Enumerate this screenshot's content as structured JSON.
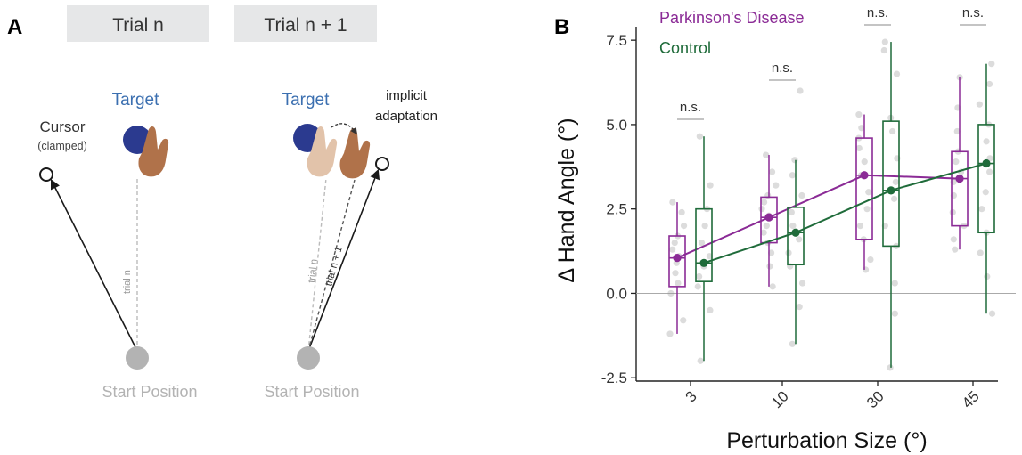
{
  "panel_a": {
    "letter": "A",
    "trial_n_header": "Trial n",
    "trial_n1_header": "Trial n + 1",
    "target_label": "Target",
    "cursor_label": "Cursor",
    "cursor_sub": "(clamped)",
    "implicit_line1": "implicit",
    "implicit_line2": "adaptation",
    "trial_n_path": "trial n",
    "trial_n1_path": "trial n + 1",
    "start_label": "Start Position",
    "colors": {
      "target": "#2b3a8f",
      "start": "#b3b3b3",
      "header_bg": "#e6e7e8",
      "label_blue": "#3b6fb0"
    }
  },
  "panel_b": {
    "letter": "B",
    "chart_data": {
      "type": "box",
      "xlabel": "Perturbation Size (°)",
      "ylabel": "Δ Hand Angle (°)",
      "categories": [
        "3",
        "10",
        "30",
        "45"
      ],
      "ylim": [
        -2.6,
        7.9
      ],
      "yticks": [
        "-2.5",
        "0.0",
        "2.5",
        "5.0",
        "7.5"
      ],
      "yticks_values": [
        -2.5,
        0,
        2.5,
        5,
        7.5
      ],
      "legend_position": "top-left",
      "significance": [
        "n.s.",
        "n.s.",
        "n.s.",
        "n.s."
      ],
      "series": [
        {
          "name": "Parkinson's Disease",
          "color": "#8b2b96",
          "means": [
            1.05,
            2.25,
            3.5,
            3.4
          ],
          "boxes": [
            {
              "q1": 0.2,
              "median": 1.05,
              "q3": 1.7,
              "min": -1.2,
              "max": 2.7
            },
            {
              "q1": 1.5,
              "median": 2.25,
              "q3": 2.85,
              "min": 0.2,
              "max": 4.1
            },
            {
              "q1": 1.6,
              "median": 3.5,
              "q3": 4.6,
              "min": 0.7,
              "max": 5.3
            },
            {
              "q1": 2.0,
              "median": 3.4,
              "q3": 4.2,
              "min": 1.3,
              "max": 6.4
            }
          ],
          "points": [
            [
              -1.2,
              -0.8,
              0.0,
              0.3,
              0.6,
              0.9,
              1.1,
              1.3,
              1.5,
              1.7,
              2.0,
              2.4,
              2.7
            ],
            [
              0.2,
              0.8,
              1.2,
              1.5,
              1.8,
              2.0,
              2.3,
              2.5,
              2.7,
              2.9,
              3.2,
              3.6,
              4.1
            ],
            [
              0.7,
              1.0,
              1.6,
              2.0,
              2.5,
              3.0,
              3.5,
              3.9,
              4.3,
              4.6,
              4.9,
              5.3
            ],
            [
              1.3,
              1.6,
              2.0,
              2.4,
              2.9,
              3.3,
              3.6,
              3.9,
              4.2,
              4.8,
              5.5,
              6.4
            ]
          ]
        },
        {
          "name": "Control",
          "color": "#1f6b3a",
          "means": [
            0.9,
            1.8,
            3.05,
            3.85
          ],
          "boxes": [
            {
              "q1": 0.35,
              "median": 0.9,
              "q3": 2.5,
              "min": -2.0,
              "max": 4.65
            },
            {
              "q1": 0.85,
              "median": 1.8,
              "q3": 2.55,
              "min": -1.5,
              "max": 3.95
            },
            {
              "q1": 1.4,
              "median": 3.05,
              "q3": 5.1,
              "min": -2.2,
              "max": 7.45
            },
            {
              "q1": 1.8,
              "median": 3.85,
              "q3": 5.0,
              "min": -0.6,
              "max": 6.8
            }
          ],
          "points": [
            [
              -2.0,
              -0.5,
              0.2,
              0.5,
              0.8,
              1.1,
              1.5,
              2.0,
              2.5,
              3.2,
              4.65
            ],
            [
              -1.5,
              -0.4,
              0.3,
              0.8,
              1.2,
              1.6,
              2.0,
              2.4,
              2.9,
              3.5,
              3.95,
              6.0
            ],
            [
              -2.2,
              -0.6,
              0.3,
              1.4,
              2.0,
              2.8,
              3.3,
              4.0,
              4.8,
              5.2,
              6.5,
              7.2,
              7.45
            ],
            [
              -0.6,
              0.5,
              1.2,
              1.8,
              2.5,
              3.0,
              3.6,
              4.0,
              4.5,
              5.0,
              5.6,
              6.2,
              6.8
            ]
          ]
        }
      ]
    }
  }
}
